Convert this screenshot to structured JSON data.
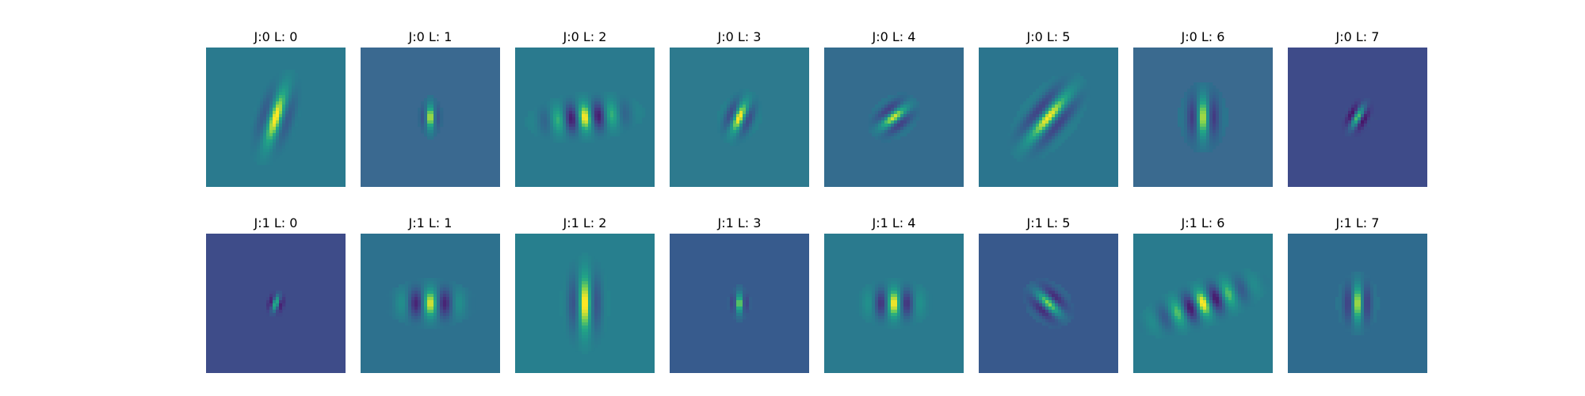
{
  "chart_data": {
    "type": "heatmap",
    "colormap": "viridis",
    "rows": 2,
    "columns": 8,
    "axes_visible": false,
    "panels": [
      {
        "title": "J:0 L: 0",
        "background": "#2a7a8e",
        "filter": {
          "wavelength": 0.22,
          "sigma_along": 0.14,
          "sigma_across": 0.065,
          "theta": 0.3,
          "amplitude": 0.5
        }
      },
      {
        "title": "J:0 L: 1",
        "background": "#3a6990",
        "filter": {
          "wavelength": 0.14,
          "sigma_along": 0.06,
          "sigma_across": 0.035,
          "theta": 0.0,
          "amplitude": 0.55
        }
      },
      {
        "title": "J:0 L: 2",
        "background": "#2a7a8e",
        "filter": {
          "wavelength": 0.2,
          "sigma_along": 0.07,
          "sigma_across": 0.17,
          "theta": -0.1,
          "amplitude": 0.5
        }
      },
      {
        "title": "J:0 L: 3",
        "background": "#2d7a8e",
        "filter": {
          "wavelength": 0.16,
          "sigma_along": 0.08,
          "sigma_across": 0.06,
          "theta": 0.4,
          "amplitude": 0.5
        }
      },
      {
        "title": "J:0 L: 4",
        "background": "#346c8e",
        "filter": {
          "wavelength": 0.16,
          "sigma_along": 0.08,
          "sigma_across": 0.06,
          "theta": 0.9,
          "amplitude": 0.5
        }
      },
      {
        "title": "J:0 L: 5",
        "background": "#2b758e",
        "filter": {
          "wavelength": 0.2,
          "sigma_along": 0.15,
          "sigma_across": 0.08,
          "theta": 0.7,
          "amplitude": 0.5
        }
      },
      {
        "title": "J:0 L: 6",
        "background": "#3a6a8f",
        "filter": {
          "wavelength": 0.18,
          "sigma_along": 0.1,
          "sigma_across": 0.07,
          "theta": 0.0,
          "amplitude": 0.5
        }
      },
      {
        "title": "J:0 L: 7",
        "background": "#3e4b89",
        "filter": {
          "wavelength": 0.12,
          "sigma_along": 0.06,
          "sigma_across": 0.04,
          "theta": 0.5,
          "amplitude": 0.55
        }
      },
      {
        "title": "J:1 L: 0",
        "background": "#3e4c89",
        "filter": {
          "wavelength": 0.1,
          "sigma_along": 0.04,
          "sigma_across": 0.03,
          "theta": 0.3,
          "amplitude": 0.55
        }
      },
      {
        "title": "J:1 L: 1",
        "background": "#2d718e",
        "filter": {
          "wavelength": 0.22,
          "sigma_along": 0.07,
          "sigma_across": 0.13,
          "theta": 0.0,
          "amplitude": 0.5
        }
      },
      {
        "title": "J:1 L: 2",
        "background": "#277f8e",
        "filter": {
          "wavelength": 0.2,
          "sigma_along": 0.14,
          "sigma_across": 0.07,
          "theta": 0.0,
          "amplitude": 0.5
        }
      },
      {
        "title": "J:1 L: 3",
        "background": "#375b8d",
        "filter": {
          "wavelength": 0.12,
          "sigma_along": 0.05,
          "sigma_across": 0.035,
          "theta": 0.0,
          "amplitude": 0.55
        }
      },
      {
        "title": "J:1 L: 4",
        "background": "#2a7a8e",
        "filter": {
          "wavelength": 0.2,
          "sigma_along": 0.07,
          "sigma_across": 0.11,
          "theta": 0.0,
          "amplitude": 0.5
        }
      },
      {
        "title": "J:1 L: 5",
        "background": "#38598c",
        "filter": {
          "wavelength": 0.16,
          "sigma_along": 0.08,
          "sigma_across": 0.06,
          "theta": -0.8,
          "amplitude": 0.5
        }
      },
      {
        "title": "J:1 L: 6",
        "background": "#297b8e",
        "filter": {
          "wavelength": 0.2,
          "sigma_along": 0.07,
          "sigma_across": 0.2,
          "theta": -0.35,
          "amplitude": 0.5
        }
      },
      {
        "title": "J:1 L: 7",
        "background": "#2f6b8e",
        "filter": {
          "wavelength": 0.16,
          "sigma_along": 0.09,
          "sigma_across": 0.06,
          "theta": 0.0,
          "amplitude": 0.5
        }
      }
    ]
  }
}
